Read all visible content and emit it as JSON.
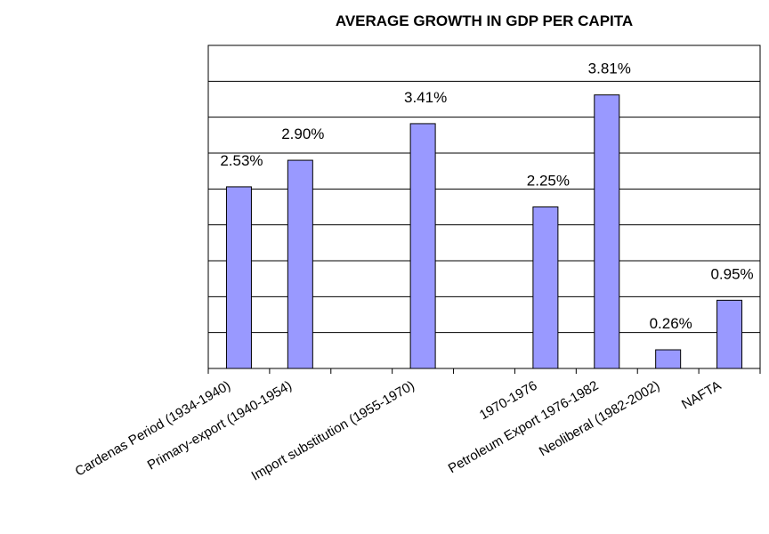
{
  "chart_data": {
    "type": "bar",
    "title": "AVERAGE GROWTH IN GDP PER CAPITA",
    "xlabel": "",
    "ylabel": "",
    "categories": [
      "Cardenas Period (1934-1940)",
      "Primary-export (1940-1954)",
      "Import substitution (1955-1970)",
      "1970-1976",
      "Petroleum Export 1976-1982",
      "Neoliberal (1982-2002)",
      "NAFTA"
    ],
    "bars": [
      {
        "slot": 0,
        "value": 2.53,
        "label": "2.53%"
      },
      {
        "slot": 1,
        "value": 2.9,
        "label": "2.90%"
      },
      {
        "slot": 3,
        "value": 3.41,
        "label": "3.41%"
      },
      {
        "slot": 5,
        "value": 2.25,
        "label": "2.25%"
      },
      {
        "slot": 6,
        "value": 3.81,
        "label": "3.81%"
      },
      {
        "slot": 7,
        "value": 0.26,
        "label": "0.26%"
      },
      {
        "slot": 8,
        "value": 0.95,
        "label": "0.95%"
      }
    ],
    "ylim": [
      0,
      4.5
    ],
    "gridlines": [
      0.5,
      1.0,
      1.5,
      2.0,
      2.5,
      3.0,
      3.5,
      4.0
    ],
    "grid": true,
    "legend": "none",
    "bar_color": "#9999ff",
    "bar_outline": "#000000"
  }
}
